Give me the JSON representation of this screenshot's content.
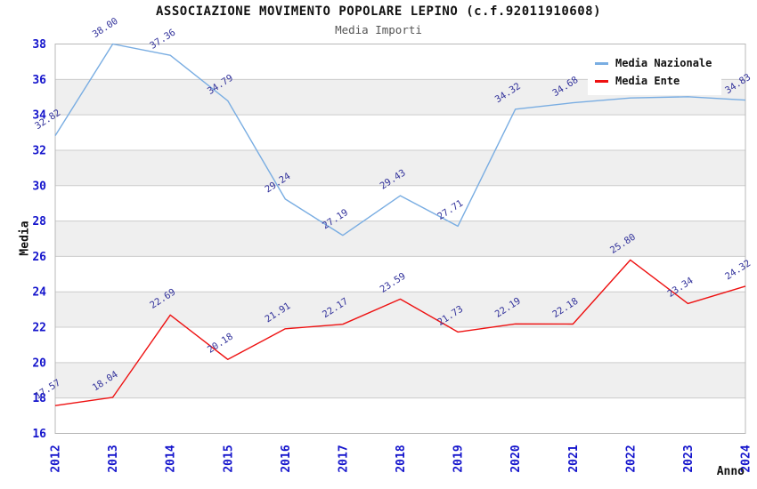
{
  "header": {
    "title": "ASSOCIAZIONE MOVIMENTO POPOLARE LEPINO (c.f.92011910608)",
    "subtitle": "Media Importi"
  },
  "axes": {
    "y_label": "Media",
    "x_label": "Anno",
    "y_ticks": [
      16,
      18,
      20,
      22,
      24,
      26,
      28,
      30,
      32,
      34,
      36,
      38
    ],
    "x_ticks": [
      "2012",
      "2013",
      "2014",
      "2015",
      "2016",
      "2017",
      "2018",
      "2019",
      "2020",
      "2021",
      "2022",
      "2023",
      "2024"
    ]
  },
  "legend": {
    "items": [
      {
        "label": "Media Nazionale",
        "color": "#79ade2"
      },
      {
        "label": "Media Ente",
        "color": "#ee1111"
      }
    ]
  },
  "colors": {
    "tick_label": "#1414cc",
    "point_label": "#32329b",
    "gridline": "#cccccc",
    "plot_border": "#b8b8b8",
    "band_white": "#ffffff",
    "band_gray": "#efefef"
  },
  "chart_data": {
    "type": "line",
    "title": "ASSOCIAZIONE MOVIMENTO POPOLARE LEPINO (c.f.92011910608)",
    "subtitle": "Media Importi",
    "xlabel": "Anno",
    "ylabel": "Media",
    "x": [
      2012,
      2013,
      2014,
      2015,
      2016,
      2017,
      2018,
      2019,
      2020,
      2021,
      2022,
      2023,
      2024
    ],
    "ylim": [
      16,
      38
    ],
    "grid": "horizontal-bands",
    "legend_position": "top-right",
    "series": [
      {
        "name": "Media Nazionale",
        "color": "#79ade2",
        "values": [
          32.82,
          38.0,
          37.36,
          34.79,
          29.24,
          27.19,
          29.43,
          27.71,
          34.32,
          34.68,
          34.95,
          35.02,
          34.83
        ],
        "labels": [
          "32.82",
          "38.00",
          "37.36",
          "34.79",
          "29.24",
          "27.19",
          "29.43",
          "27.71",
          "34.32",
          "34.68",
          "",
          "",
          "34.83"
        ]
      },
      {
        "name": "Media Ente",
        "color": "#ee1111",
        "values": [
          17.57,
          18.04,
          22.69,
          20.18,
          21.91,
          22.17,
          23.59,
          21.73,
          22.19,
          22.18,
          25.8,
          23.34,
          24.32
        ],
        "labels": [
          "17.57",
          "18.04",
          "22.69",
          "20.18",
          "21.91",
          "22.17",
          "23.59",
          "21.73",
          "22.19",
          "22.18",
          "25.80",
          "23.34",
          "24.32"
        ]
      }
    ]
  }
}
